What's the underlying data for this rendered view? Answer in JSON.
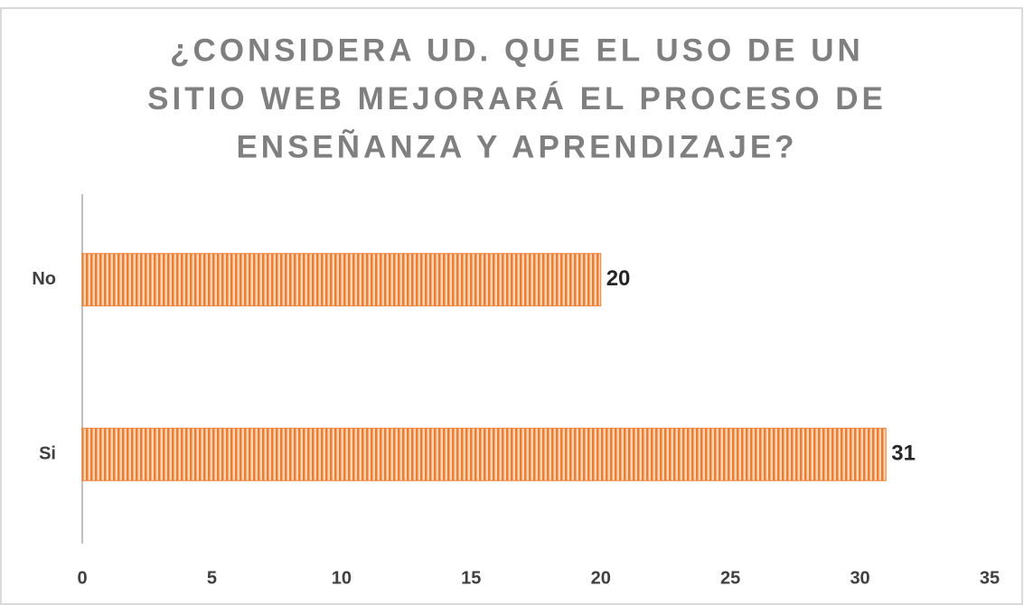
{
  "chart_data": {
    "type": "bar",
    "orientation": "horizontal",
    "title": [
      "¿CONSIDERA UD. QUE EL USO DE UN",
      "SITIO WEB MEJORARÁ EL PROCESO DE",
      "ENSEÑANZA Y APRENDIZAJE?"
    ],
    "categories": [
      "No",
      "Si"
    ],
    "values": [
      20,
      31
    ],
    "color": "#ed7d31",
    "xlim": [
      0,
      35
    ],
    "xticks": [
      0,
      5,
      10,
      15,
      20,
      25,
      30,
      35
    ],
    "grid": false
  }
}
